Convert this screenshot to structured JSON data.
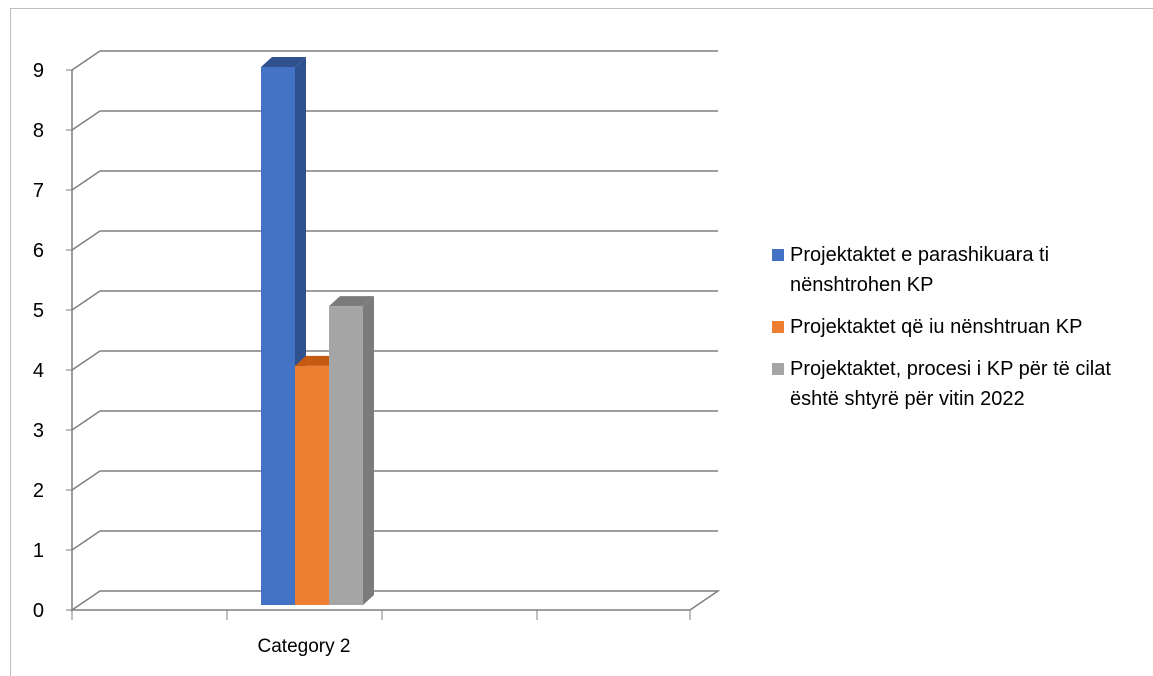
{
  "chart_data": {
    "type": "bar",
    "categories": [
      "Category 2"
    ],
    "series": [
      {
        "name": "Projektaktet e parashikuara ti nënshtrohen KP",
        "values": [
          9
        ],
        "color": "#4472C4",
        "side_color": "#2F528F"
      },
      {
        "name": "Projektaktet që iu nënshtruan KP",
        "values": [
          4
        ],
        "color": "#ED7D31",
        "side_color": "#C55A11"
      },
      {
        "name": "Projektaktet, procesi i KP për të cilat është shtyrë për vitin 2022",
        "values": [
          5
        ],
        "color": "#A5A5A5",
        "side_color": "#7B7B7B"
      }
    ],
    "ylim": [
      0,
      9
    ],
    "y_ticks": [
      "0",
      "1",
      "2",
      "3",
      "4",
      "5",
      "6",
      "7",
      "8",
      "9"
    ],
    "grid": true,
    "legend_position": "right",
    "three_d": true
  }
}
